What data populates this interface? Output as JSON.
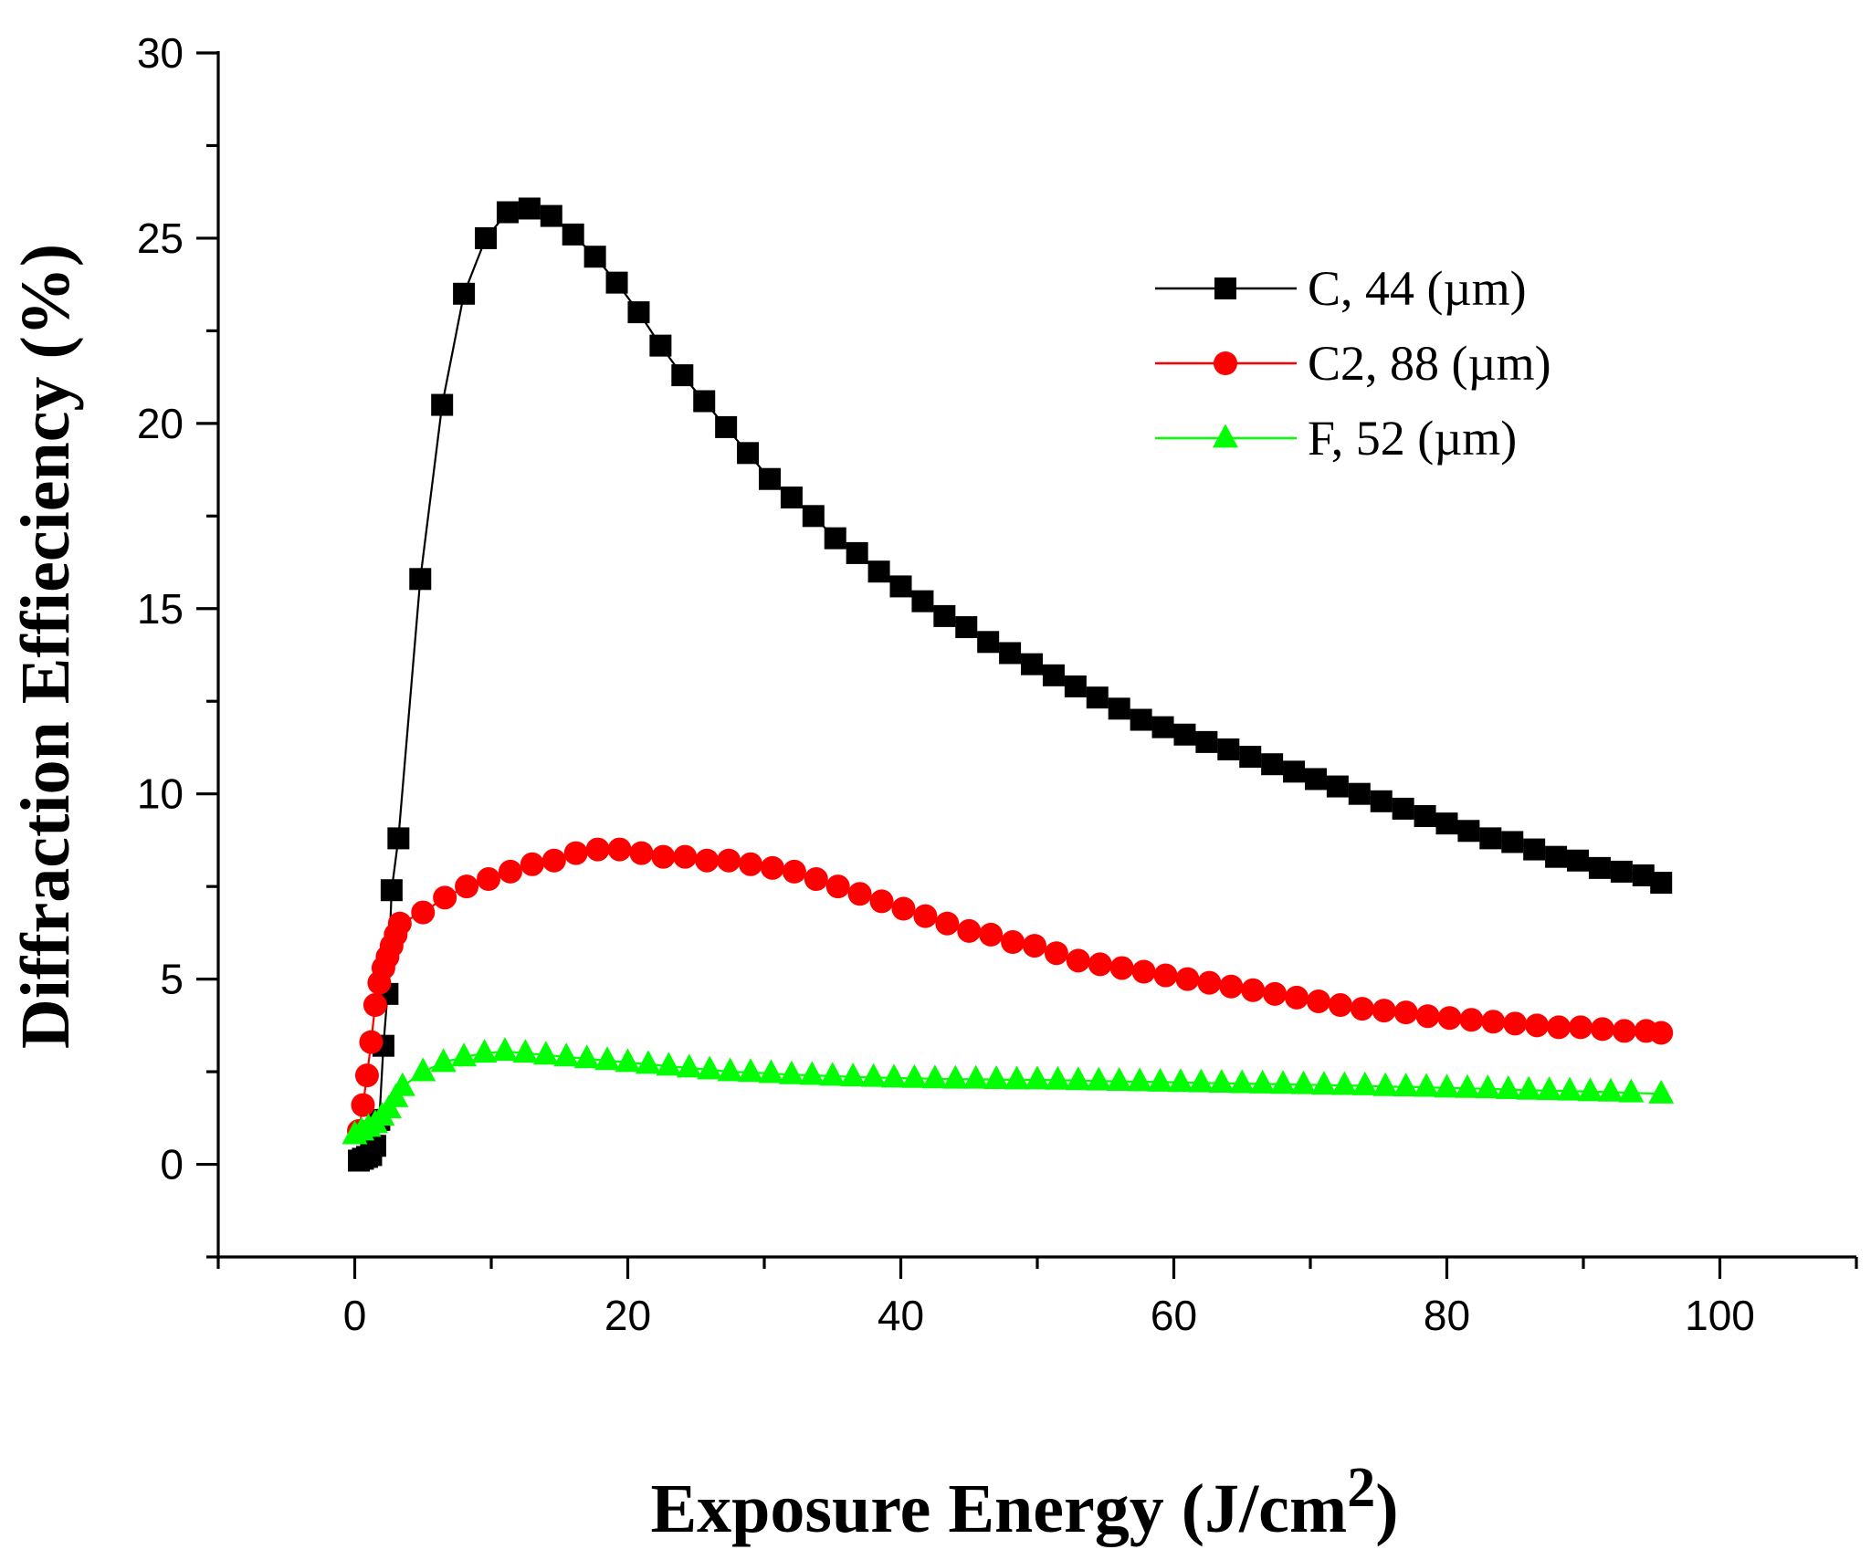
{
  "chart_data": {
    "type": "scatter",
    "title": "",
    "xlabel": "Exposure Energy (J/cm",
    "xlabel_superscript": "2",
    "xlabel_suffix": ")",
    "ylabel": "Diffraction Effieciency (%)",
    "xlim": [
      -10,
      110
    ],
    "ylim": [
      -2.5,
      30
    ],
    "xticks": [
      "0",
      "20",
      "40",
      "60",
      "80",
      "100"
    ],
    "xtick_values": [
      0,
      20,
      40,
      60,
      80,
      100
    ],
    "yticks": [
      "0",
      "5",
      "10",
      "15",
      "20",
      "25",
      "30"
    ],
    "ytick_values": [
      0,
      5,
      10,
      15,
      20,
      25,
      30
    ],
    "grid": false,
    "legend_position": "top-right",
    "series": [
      {
        "name": "C, 44 (µm)",
        "color": "#000000",
        "marker": "square",
        "x": [
          0.3,
          0.6,
          0.9,
          1.2,
          1.5,
          1.8,
          2.1,
          2.4,
          2.7,
          3.2,
          4.8,
          6.4,
          8.0,
          9.6,
          11.2,
          12.8,
          14.4,
          16.0,
          17.6,
          19.2,
          20.8,
          22.4,
          24.0,
          25.6,
          27.2,
          28.8,
          30.4,
          32.0,
          33.6,
          35.2,
          36.8,
          38.4,
          40.0,
          41.6,
          43.2,
          44.8,
          46.4,
          48.0,
          49.6,
          51.2,
          52.8,
          54.4,
          56.0,
          57.6,
          59.2,
          60.8,
          62.4,
          64.0,
          65.6,
          67.2,
          68.8,
          70.4,
          72.0,
          73.6,
          75.2,
          76.8,
          78.4,
          80.0,
          81.6,
          83.2,
          84.8,
          86.4,
          88.0,
          89.6,
          91.2,
          92.8,
          94.4,
          95.7
        ],
        "y": [
          0.1,
          0.15,
          0.2,
          0.25,
          0.5,
          1.2,
          3.2,
          4.6,
          7.4,
          8.8,
          15.8,
          20.5,
          23.5,
          25.0,
          25.7,
          25.8,
          25.6,
          25.1,
          24.5,
          23.8,
          23.0,
          22.1,
          21.3,
          20.6,
          19.9,
          19.2,
          18.5,
          18.0,
          17.5,
          16.9,
          16.5,
          16.0,
          15.6,
          15.2,
          14.8,
          14.5,
          14.1,
          13.8,
          13.5,
          13.2,
          12.9,
          12.6,
          12.3,
          12.0,
          11.8,
          11.6,
          11.4,
          11.2,
          11.0,
          10.8,
          10.6,
          10.4,
          10.2,
          10.0,
          9.8,
          9.6,
          9.4,
          9.2,
          9.0,
          8.8,
          8.7,
          8.5,
          8.3,
          8.2,
          8.0,
          7.9,
          7.8,
          7.6
        ]
      },
      {
        "name": "C2, 88 (µm)",
        "color": "#ff0000",
        "marker": "circle",
        "x": [
          0.3,
          0.6,
          0.9,
          1.2,
          1.5,
          1.8,
          2.1,
          2.4,
          2.7,
          3.0,
          3.3,
          5.0,
          6.6,
          8.2,
          9.8,
          11.4,
          13.0,
          14.6,
          16.2,
          17.8,
          19.4,
          21.0,
          22.6,
          24.2,
          25.8,
          27.4,
          29.0,
          30.6,
          32.2,
          33.8,
          35.4,
          37.0,
          38.6,
          40.2,
          41.8,
          43.4,
          45.0,
          46.6,
          48.2,
          49.8,
          51.4,
          53.0,
          54.6,
          56.2,
          57.8,
          59.4,
          61.0,
          62.6,
          64.2,
          65.8,
          67.4,
          69.0,
          70.6,
          72.2,
          73.8,
          75.4,
          77.0,
          78.6,
          80.2,
          81.8,
          83.4,
          85.0,
          86.6,
          88.2,
          89.8,
          91.4,
          93.0,
          94.6,
          95.7
        ],
        "y": [
          0.9,
          1.6,
          2.4,
          3.3,
          4.3,
          4.9,
          5.3,
          5.6,
          5.9,
          6.2,
          6.5,
          6.8,
          7.2,
          7.5,
          7.7,
          7.9,
          8.1,
          8.2,
          8.4,
          8.5,
          8.5,
          8.4,
          8.3,
          8.3,
          8.2,
          8.2,
          8.1,
          8.0,
          7.9,
          7.7,
          7.5,
          7.3,
          7.1,
          6.9,
          6.7,
          6.5,
          6.3,
          6.2,
          6.0,
          5.9,
          5.7,
          5.5,
          5.4,
          5.3,
          5.2,
          5.1,
          5.0,
          4.9,
          4.8,
          4.7,
          4.6,
          4.5,
          4.4,
          4.3,
          4.2,
          4.15,
          4.1,
          4.0,
          3.95,
          3.9,
          3.85,
          3.8,
          3.75,
          3.7,
          3.7,
          3.65,
          3.6,
          3.6,
          3.55
        ]
      },
      {
        "name": "F, 52 (µm)",
        "color": "#00ff00",
        "marker": "triangle",
        "x": [
          0.0,
          0.5,
          1.0,
          1.5,
          2.0,
          2.5,
          3.0,
          3.5,
          5.0,
          6.5,
          8.0,
          9.5,
          11.0,
          12.5,
          14.0,
          15.5,
          17.0,
          18.5,
          20.0,
          21.5,
          23.0,
          24.5,
          26.0,
          27.5,
          29.0,
          30.5,
          32.0,
          33.5,
          35.0,
          36.5,
          38.0,
          39.5,
          41.0,
          42.5,
          44.0,
          45.5,
          47.0,
          48.5,
          50.0,
          51.5,
          53.0,
          54.5,
          56.0,
          57.5,
          59.0,
          60.5,
          62.0,
          63.5,
          65.0,
          66.5,
          68.0,
          69.5,
          71.0,
          72.5,
          74.0,
          75.5,
          77.0,
          78.5,
          80.0,
          81.5,
          83.0,
          84.5,
          86.0,
          87.5,
          89.0,
          90.5,
          92.0,
          93.5,
          95.7
        ],
        "y": [
          0.8,
          0.9,
          1.0,
          1.1,
          1.3,
          1.5,
          1.8,
          2.1,
          2.5,
          2.75,
          2.9,
          3.0,
          3.05,
          3.0,
          2.95,
          2.9,
          2.85,
          2.8,
          2.75,
          2.7,
          2.65,
          2.6,
          2.55,
          2.5,
          2.48,
          2.45,
          2.42,
          2.4,
          2.38,
          2.36,
          2.35,
          2.33,
          2.32,
          2.31,
          2.3,
          2.3,
          2.29,
          2.28,
          2.28,
          2.27,
          2.26,
          2.25,
          2.24,
          2.23,
          2.22,
          2.21,
          2.2,
          2.19,
          2.18,
          2.17,
          2.16,
          2.15,
          2.14,
          2.13,
          2.12,
          2.1,
          2.09,
          2.08,
          2.06,
          2.05,
          2.04,
          2.02,
          2.0,
          1.99,
          1.98,
          1.96,
          1.95,
          1.93,
          1.9
        ]
      }
    ]
  }
}
